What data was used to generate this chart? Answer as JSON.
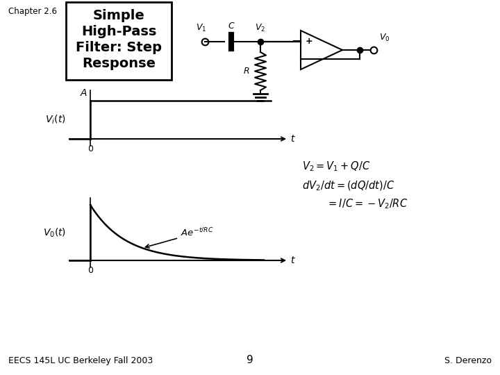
{
  "bg_color": "#ffffff",
  "chapter_text": "Chapter 2.6",
  "title_text": "Simple\nHigh-Pass\nFilter: Step\nResponse",
  "footer_left": "EECS 145L UC Berkeley Fall 2003",
  "footer_center": "9",
  "footer_right": "S. Derenzo",
  "eq1": "$V_2 = V_1 + Q / C$",
  "eq2": "$dV_2 / dt = (dQ/ dt) / C$",
  "eq3": "$= I / C = -V_2 / RC$",
  "vi_label": "$V_i(t)$",
  "vo_label": "$V_0(t)$",
  "A_label": "A",
  "t_label1": "t",
  "t_label2": "t",
  "zero_label1": "0",
  "zero_label2": "0",
  "exp_label": "$Ae^{-t/RC}$"
}
